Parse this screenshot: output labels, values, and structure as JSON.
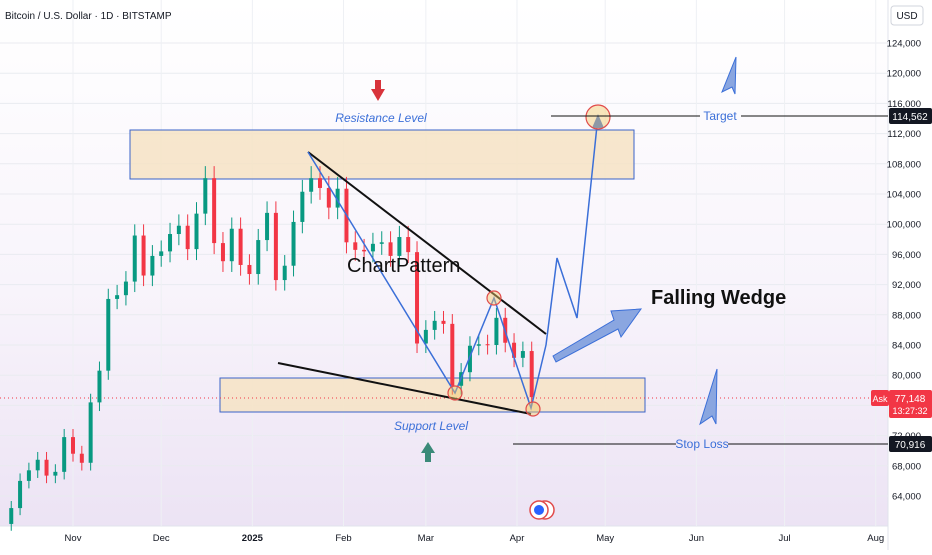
{
  "header": {
    "symbol_title": "Bitcoin / U.S. Dollar · 1D · BITSTAMP",
    "currency": "USD"
  },
  "price_tags": {
    "target": "114,562",
    "ask_label": "Ask",
    "ask_price": "77,148",
    "ask_countdown": "13:27:32",
    "stop_loss": "70,916"
  },
  "annotations": {
    "resistance": "Resistance Level",
    "support": "Support Level",
    "pattern": "ChartPattern",
    "wedge": "Falling Wedge",
    "target": "Target",
    "stop_loss": "Stop Loss"
  },
  "colors": {
    "up": "#089981",
    "down": "#f23645",
    "zone_fill": "#f6e3c4",
    "zone_border": "#3a63c9",
    "annotation_blue": "#3b6fd8",
    "arrow_red": "#d8333b",
    "arrow_green": "#3a8a78"
  },
  "chart_data": {
    "type": "candlestick",
    "symbol": "Bitcoin / U.S. Dollar",
    "interval": "1D",
    "exchange": "BITSTAMP",
    "y_axis": {
      "min": 60000,
      "max": 126000,
      "ticks": [
        64000,
        68000,
        72000,
        76000,
        80000,
        84000,
        88000,
        92000,
        96000,
        100000,
        104000,
        108000,
        112000,
        116000,
        120000,
        124000
      ],
      "tick_labels": [
        "64,000",
        "68,000",
        "72,000",
        "76,000",
        "80,000",
        "84,000",
        "88,000",
        "92,000",
        "96,000",
        "100,000",
        "104,000",
        "108,000",
        "112,000",
        "116,000",
        "120,000",
        "124,000"
      ]
    },
    "x_axis": {
      "labels": [
        "Nov",
        "Dec",
        "2025",
        "Feb",
        "Mar",
        "Apr",
        "May",
        "Jun",
        "Jul",
        "Aug"
      ]
    },
    "candles": [
      {
        "date": "2024-10-11",
        "open": 60300,
        "close": 62400
      },
      {
        "date": "2024-10-14",
        "open": 62400,
        "close": 66000
      },
      {
        "date": "2024-10-17",
        "open": 66000,
        "close": 67400
      },
      {
        "date": "2024-10-20",
        "open": 67400,
        "close": 68800
      },
      {
        "date": "2024-10-23",
        "open": 68800,
        "close": 66700
      },
      {
        "date": "2024-10-26",
        "open": 66700,
        "close": 67200
      },
      {
        "date": "2024-10-29",
        "open": 67200,
        "close": 71800
      },
      {
        "date": "2024-11-01",
        "open": 71800,
        "close": 69600
      },
      {
        "date": "2024-11-04",
        "open": 69600,
        "close": 68400
      },
      {
        "date": "2024-11-07",
        "open": 68400,
        "close": 76400
      },
      {
        "date": "2024-11-10",
        "open": 76400,
        "close": 80600
      },
      {
        "date": "2024-11-13",
        "open": 80600,
        "close": 90100
      },
      {
        "date": "2024-11-16",
        "open": 90100,
        "close": 90600
      },
      {
        "date": "2024-11-19",
        "open": 90600,
        "close": 92400
      },
      {
        "date": "2024-11-22",
        "open": 92400,
        "close": 98500
      },
      {
        "date": "2024-11-25",
        "open": 98500,
        "close": 93200
      },
      {
        "date": "2024-11-28",
        "open": 93200,
        "close": 95800
      },
      {
        "date": "2024-12-01",
        "open": 95800,
        "close": 96400
      },
      {
        "date": "2024-12-04",
        "open": 96400,
        "close": 98700
      },
      {
        "date": "2024-12-07",
        "open": 98700,
        "close": 99800
      },
      {
        "date": "2024-12-10",
        "open": 99800,
        "close": 96700
      },
      {
        "date": "2024-12-13",
        "open": 96700,
        "close": 101400
      },
      {
        "date": "2024-12-16",
        "open": 101400,
        "close": 106100
      },
      {
        "date": "2024-12-19",
        "open": 106100,
        "close": 97500
      },
      {
        "date": "2024-12-22",
        "open": 97500,
        "close": 95100
      },
      {
        "date": "2024-12-25",
        "open": 95100,
        "close": 99400
      },
      {
        "date": "2024-12-28",
        "open": 99400,
        "close": 94600
      },
      {
        "date": "2024-12-31",
        "open": 94600,
        "close": 93400
      },
      {
        "date": "2025-01-03",
        "open": 93400,
        "close": 97900
      },
      {
        "date": "2025-01-06",
        "open": 97900,
        "close": 101500
      },
      {
        "date": "2025-01-09",
        "open": 101500,
        "close": 92600
      },
      {
        "date": "2025-01-12",
        "open": 92600,
        "close": 94500
      },
      {
        "date": "2025-01-15",
        "open": 94500,
        "close": 100300
      },
      {
        "date": "2025-01-18",
        "open": 100300,
        "close": 104300
      },
      {
        "date": "2025-01-21",
        "open": 104300,
        "close": 106100
      },
      {
        "date": "2025-01-24",
        "open": 106100,
        "close": 104800
      },
      {
        "date": "2025-01-27",
        "open": 104800,
        "close": 102200
      },
      {
        "date": "2025-01-30",
        "open": 102200,
        "close": 104700
      },
      {
        "date": "2025-02-02",
        "open": 104700,
        "close": 97600
      },
      {
        "date": "2025-02-05",
        "open": 97600,
        "close": 96600
      },
      {
        "date": "2025-02-08",
        "open": 96600,
        "close": 96400
      },
      {
        "date": "2025-02-11",
        "open": 96400,
        "close": 97400
      },
      {
        "date": "2025-02-14",
        "open": 97400,
        "close": 97600
      },
      {
        "date": "2025-02-17",
        "open": 97600,
        "close": 95800
      },
      {
        "date": "2025-02-20",
        "open": 95800,
        "close": 98300
      },
      {
        "date": "2025-02-23",
        "open": 98300,
        "close": 96300
      },
      {
        "date": "2025-02-26",
        "open": 96300,
        "close": 84200
      },
      {
        "date": "2025-03-01",
        "open": 84200,
        "close": 86000
      },
      {
        "date": "2025-03-04",
        "open": 86000,
        "close": 87200
      },
      {
        "date": "2025-03-07",
        "open": 87200,
        "close": 86800
      },
      {
        "date": "2025-03-10",
        "open": 86800,
        "close": 78600
      },
      {
        "date": "2025-03-13",
        "open": 78600,
        "close": 80400
      },
      {
        "date": "2025-03-16",
        "open": 80400,
        "close": 83900
      },
      {
        "date": "2025-03-19",
        "open": 83900,
        "close": 84100
      },
      {
        "date": "2025-03-22",
        "open": 84100,
        "close": 84000
      },
      {
        "date": "2025-03-25",
        "open": 84000,
        "close": 87600
      },
      {
        "date": "2025-03-28",
        "open": 87600,
        "close": 84300
      },
      {
        "date": "2025-03-31",
        "open": 84300,
        "close": 82300
      },
      {
        "date": "2025-04-03",
        "open": 82300,
        "close": 83200
      },
      {
        "date": "2025-04-06",
        "open": 83200,
        "close": 77100
      }
    ],
    "levels": {
      "target": 114562,
      "current": 77148,
      "stop_loss": 70916
    },
    "grid": true
  }
}
